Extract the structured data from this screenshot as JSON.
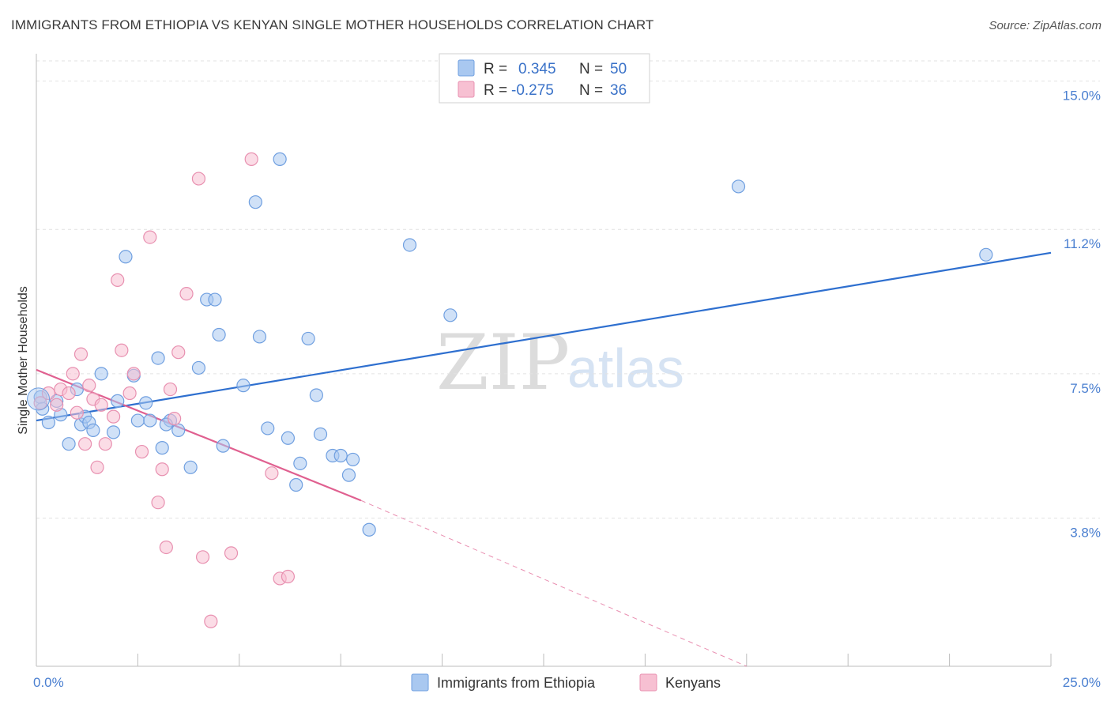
{
  "title": "IMMIGRANTS FROM ETHIOPIA VS KENYAN SINGLE MOTHER HOUSEHOLDS CORRELATION CHART",
  "source": "Source: ZipAtlas.com",
  "watermark": {
    "zip": "ZIP",
    "atlas": "atlas"
  },
  "legend": {
    "r_label": "R =",
    "n_label": "N =",
    "rows": [
      {
        "r": "0.345",
        "n": "50",
        "color": "#a9c8f0",
        "border": "#6f9fe0"
      },
      {
        "r": "-0.275",
        "n": "36",
        "color": "#f7c0d2",
        "border": "#e890b0"
      }
    ]
  },
  "chart_data": {
    "type": "scatter",
    "title": "IMMIGRANTS FROM ETHIOPIA VS KENYAN SINGLE MOTHER HOUSEHOLDS CORRELATION CHART",
    "xlabel": "",
    "ylabel": "Single Mother Households",
    "xlim": [
      0,
      25
    ],
    "ylim": [
      0,
      15.5
    ],
    "x_tick_labels": [
      "0.0%",
      "25.0%"
    ],
    "y_ticks": [
      3.8,
      7.5,
      11.2,
      15.0
    ],
    "y_tick_labels": [
      "3.8%",
      "7.5%",
      "11.2%",
      "15.0%"
    ],
    "grid": true,
    "legend_position": "bottom",
    "series": [
      {
        "name": "Immigrants from Ethiopia",
        "color": "#a9c8f0",
        "stroke": "#6f9fe0",
        "trend_color": "#2e6fcf",
        "trend": {
          "x": [
            0,
            25
          ],
          "y": [
            6.3,
            10.6
          ]
        },
        "points": [
          [
            0.1,
            6.9
          ],
          [
            0.3,
            6.25
          ],
          [
            0.5,
            6.8
          ],
          [
            0.6,
            6.45
          ],
          [
            0.8,
            5.7
          ],
          [
            1.0,
            7.1
          ],
          [
            1.1,
            6.2
          ],
          [
            1.2,
            6.4
          ],
          [
            1.3,
            6.25
          ],
          [
            1.4,
            6.05
          ],
          [
            1.6,
            7.5
          ],
          [
            1.9,
            6.0
          ],
          [
            2.0,
            6.8
          ],
          [
            2.2,
            10.5
          ],
          [
            2.4,
            7.45
          ],
          [
            2.5,
            6.3
          ],
          [
            2.7,
            6.75
          ],
          [
            2.8,
            6.3
          ],
          [
            3.0,
            7.9
          ],
          [
            3.1,
            5.6
          ],
          [
            3.3,
            6.3
          ],
          [
            3.5,
            6.05
          ],
          [
            3.8,
            5.1
          ],
          [
            4.0,
            7.65
          ],
          [
            4.2,
            9.4
          ],
          [
            4.4,
            9.4
          ],
          [
            4.5,
            8.5
          ],
          [
            4.6,
            5.65
          ],
          [
            5.1,
            7.2
          ],
          [
            5.4,
            11.9
          ],
          [
            5.5,
            8.45
          ],
          [
            5.7,
            6.1
          ],
          [
            6.0,
            13.0
          ],
          [
            6.2,
            5.85
          ],
          [
            6.4,
            4.65
          ],
          [
            6.5,
            5.2
          ],
          [
            6.7,
            8.4
          ],
          [
            6.9,
            6.95
          ],
          [
            7.0,
            5.95
          ],
          [
            7.3,
            5.4
          ],
          [
            7.5,
            5.4
          ],
          [
            7.7,
            4.9
          ],
          [
            7.8,
            5.3
          ],
          [
            8.2,
            3.5
          ],
          [
            9.2,
            10.8
          ],
          [
            10.2,
            9.0
          ],
          [
            0.15,
            6.6
          ],
          [
            17.3,
            12.3
          ],
          [
            23.4,
            10.55
          ],
          [
            3.2,
            6.2
          ]
        ]
      },
      {
        "name": "Kenyans",
        "color": "#f7c0d2",
        "stroke": "#e890b0",
        "trend_color": "#e06090",
        "trend": {
          "x": [
            0,
            8.0
          ],
          "y": [
            7.6,
            4.25
          ]
        },
        "trend_dashed": {
          "x": [
            8.0,
            17.5
          ],
          "y": [
            4.25,
            0.0
          ]
        },
        "points": [
          [
            0.1,
            6.75
          ],
          [
            0.3,
            7.0
          ],
          [
            0.5,
            6.7
          ],
          [
            0.6,
            7.1
          ],
          [
            0.8,
            7.0
          ],
          [
            0.9,
            7.5
          ],
          [
            1.0,
            6.5
          ],
          [
            1.1,
            8.0
          ],
          [
            1.2,
            5.7
          ],
          [
            1.4,
            6.85
          ],
          [
            1.5,
            5.1
          ],
          [
            1.7,
            5.7
          ],
          [
            1.9,
            6.4
          ],
          [
            2.0,
            9.9
          ],
          [
            2.1,
            8.1
          ],
          [
            2.3,
            7.0
          ],
          [
            2.4,
            7.5
          ],
          [
            2.6,
            5.5
          ],
          [
            2.8,
            11.0
          ],
          [
            3.0,
            4.2
          ],
          [
            3.1,
            5.05
          ],
          [
            3.2,
            3.05
          ],
          [
            3.4,
            6.35
          ],
          [
            3.5,
            8.05
          ],
          [
            3.7,
            9.55
          ],
          [
            4.0,
            12.5
          ],
          [
            4.1,
            2.8
          ],
          [
            4.3,
            1.15
          ],
          [
            4.8,
            2.9
          ],
          [
            5.3,
            13.0
          ],
          [
            5.8,
            4.95
          ],
          [
            6.0,
            2.25
          ],
          [
            6.2,
            2.3
          ],
          [
            1.3,
            7.2
          ],
          [
            1.6,
            6.7
          ],
          [
            3.3,
            7.1
          ]
        ]
      }
    ]
  }
}
